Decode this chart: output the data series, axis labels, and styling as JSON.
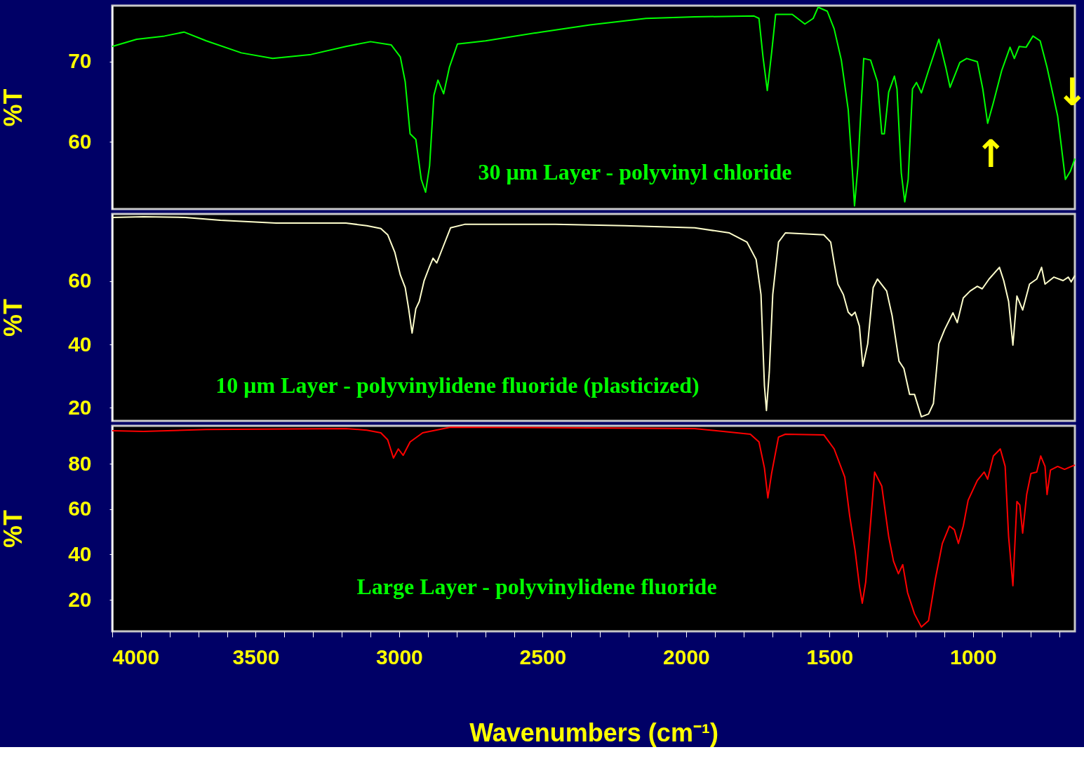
{
  "chart_data": [
    {
      "type": "line",
      "ylabel": "%T",
      "xlim": [
        4000,
        645
      ],
      "ylim": [
        51.6,
        77
      ],
      "yticks": [
        60,
        70
      ],
      "tick_labels": "y",
      "grid": false,
      "annotations": [
        "↑",
        "↓"
      ],
      "series": [
        {
          "name": "30 μm Layer - polyvinyl chloride",
          "color": "#00ff00",
          "x": [
            4000,
            3915,
            3818,
            3750,
            3672,
            3550,
            3441,
            3307,
            3186,
            3100,
            3028,
            2996,
            2979,
            2962,
            2942,
            2923,
            2908,
            2894,
            2879,
            2865,
            2845,
            2825,
            2797,
            2699,
            2505,
            2335,
            2140,
            1970,
            1763,
            1746,
            1732,
            1717,
            1702,
            1688,
            1654,
            1630,
            1586,
            1557,
            1540,
            1508,
            1484,
            1459,
            1435,
            1420,
            1413,
            1401,
            1381,
            1357,
            1333,
            1318,
            1309,
            1294,
            1274,
            1265,
            1250,
            1238,
            1226,
            1211,
            1197,
            1180,
            1155,
            1119,
            1095,
            1080,
            1046,
            1022,
            985,
            966,
            949,
            929,
            900,
            871,
            856,
            839,
            815,
            791,
            766,
            742,
            705,
            678,
            661,
            645
          ],
          "values": [
            71.9,
            72.8,
            73.2,
            73.7,
            72.6,
            71.1,
            70.4,
            70.9,
            71.9,
            72.5,
            72.1,
            70.6,
            67.5,
            61.0,
            60.3,
            55.3,
            53.7,
            57.0,
            65.8,
            67.7,
            66.0,
            69.3,
            72.2,
            72.6,
            73.7,
            74.6,
            75.4,
            75.6,
            75.7,
            75.4,
            70.6,
            66.4,
            71.1,
            75.9,
            75.9,
            75.9,
            74.7,
            75.4,
            76.8,
            76.3,
            74.1,
            70.2,
            64.0,
            56.1,
            52.0,
            57.0,
            70.4,
            70.2,
            67.5,
            61.0,
            61.0,
            66.2,
            68.2,
            66.6,
            56.1,
            52.5,
            55.3,
            66.6,
            67.4,
            66.1,
            68.9,
            72.8,
            69.3,
            66.8,
            69.9,
            70.4,
            70.0,
            66.6,
            62.3,
            64.9,
            68.9,
            71.8,
            70.4,
            71.9,
            71.8,
            73.2,
            72.6,
            69.3,
            63.2,
            55.3,
            56.3,
            57.9
          ]
        }
      ]
    },
    {
      "type": "line",
      "ylabel": "%T",
      "xlim": [
        4000,
        645
      ],
      "ylim": [
        15.8,
        81.3
      ],
      "yticks": [
        20,
        40,
        60
      ],
      "tick_labels": "y",
      "grid": false,
      "series": [
        {
          "name": "10 μm Layer - polyvinylidene fluoride (plasticized)",
          "color": "#ffffcc",
          "x": [
            4000,
            3891,
            3745,
            3623,
            3429,
            3186,
            3113,
            3064,
            3040,
            3015,
            2996,
            2979,
            2967,
            2955,
            2942,
            2930,
            2913,
            2894,
            2882,
            2869,
            2850,
            2821,
            2772,
            2456,
            2213,
            1970,
            1849,
            1788,
            1756,
            1739,
            1727,
            1720,
            1710,
            1698,
            1678,
            1654,
            1605,
            1520,
            1496,
            1484,
            1471,
            1452,
            1435,
            1423,
            1411,
            1396,
            1384,
            1367,
            1348,
            1333,
            1301,
            1282,
            1258,
            1241,
            1221,
            1204,
            1180,
            1155,
            1138,
            1119,
            1099,
            1070,
            1055,
            1034,
            1010,
            985,
            968,
            944,
            908,
            893,
            876,
            861,
            847,
            827,
            803,
            778,
            761,
            749,
            718,
            686,
            668,
            658,
            645
          ],
          "values": [
            80.2,
            80.4,
            80.2,
            79.3,
            78.4,
            78.4,
            77.6,
            76.7,
            74.7,
            69.1,
            62.0,
            58.0,
            51.3,
            43.6,
            51.3,
            53.6,
            60.2,
            64.7,
            67.3,
            65.8,
            70.2,
            76.9,
            78.0,
            78.0,
            77.6,
            76.9,
            75.3,
            72.4,
            66.9,
            55.8,
            26.9,
            19.1,
            31.3,
            55.8,
            72.4,
            75.3,
            75.1,
            74.7,
            72.4,
            65.8,
            59.1,
            55.8,
            50.2,
            49.1,
            50.2,
            45.8,
            33.1,
            40.2,
            58.0,
            60.7,
            56.9,
            49.1,
            34.7,
            32.4,
            24.2,
            24.2,
            17.1,
            18.0,
            21.3,
            40.2,
            44.7,
            50.0,
            46.9,
            54.7,
            56.9,
            58.4,
            57.6,
            60.7,
            64.4,
            60.2,
            53.6,
            39.8,
            55.3,
            50.9,
            59.1,
            60.7,
            64.4,
            59.1,
            61.3,
            60.2,
            61.3,
            59.8,
            61.8
          ]
        }
      ]
    },
    {
      "type": "line",
      "ylabel": "%T",
      "xlabel": "Wavenumbers (cm⁻¹)",
      "xlim": [
        4000,
        645
      ],
      "ylim": [
        6.1,
        96.7
      ],
      "yticks": [
        20,
        40,
        60,
        80
      ],
      "grid": false,
      "xticks": [
        4000,
        {
          "value": 3900,
          "label": null
        },
        {
          "value": 3800,
          "label": null
        },
        {
          "value": 3700,
          "label": null
        },
        {
          "value": 3600,
          "label": null
        },
        3500,
        {
          "value": 3400,
          "label": null
        },
        {
          "value": 3300,
          "label": null
        },
        {
          "value": 3200,
          "label": null
        },
        {
          "value": 3100,
          "label": null
        },
        3000,
        {
          "value": 2900,
          "label": null
        },
        {
          "value": 2800,
          "label": null
        },
        {
          "value": 2700,
          "label": null
        },
        {
          "value": 2600,
          "label": null
        },
        2500,
        {
          "value": 2400,
          "label": null
        },
        {
          "value": 2300,
          "label": null
        },
        {
          "value": 2200,
          "label": null
        },
        {
          "value": 2100,
          "label": null
        },
        2000,
        {
          "value": 1900,
          "label": null
        },
        {
          "value": 1800,
          "label": null
        },
        {
          "value": 1700,
          "label": null
        },
        {
          "value": 1600,
          "label": null
        },
        1500,
        {
          "value": 1400,
          "label": null
        },
        {
          "value": 1300,
          "label": null
        },
        {
          "value": 1200,
          "label": null
        },
        {
          "value": 1100,
          "label": null
        },
        1000,
        {
          "value": 900,
          "label": null
        },
        {
          "value": 800,
          "label": null
        },
        {
          "value": 700,
          "label": null
        }
      ],
      "series": [
        {
          "name": "Large Layer - polyvinylidene fluoride",
          "color": "#ff0000",
          "x": [
            4000,
            3891,
            3672,
            3186,
            3113,
            3064,
            3040,
            3020,
            3003,
            2986,
            2962,
            2918,
            2821,
            1970,
            1776,
            1746,
            1727,
            1715,
            1702,
            1678,
            1654,
            1520,
            1484,
            1447,
            1430,
            1411,
            1396,
            1386,
            1374,
            1357,
            1343,
            1318,
            1294,
            1277,
            1260,
            1245,
            1228,
            1204,
            1180,
            1155,
            1131,
            1107,
            1082,
            1065,
            1051,
            1034,
            1017,
            985,
            961,
            949,
            929,
            905,
            888,
            876,
            861,
            847,
            837,
            827,
            813,
            798,
            778,
            764,
            749,
            742,
            730,
            705,
            681,
            657,
            645
          ],
          "values": [
            94.5,
            94.2,
            95.1,
            95.5,
            94.8,
            93.6,
            90.5,
            82.5,
            86.5,
            83.7,
            89.6,
            93.6,
            96.1,
            95.5,
            93.0,
            89.6,
            78.1,
            64.9,
            75.7,
            91.7,
            93.0,
            92.7,
            86.5,
            74.1,
            57.1,
            41.7,
            26.2,
            18.5,
            27.8,
            54.0,
            76.3,
            70.1,
            47.9,
            37.0,
            31.5,
            35.5,
            23.1,
            13.8,
            8.0,
            10.8,
            29.3,
            44.8,
            52.5,
            50.9,
            44.8,
            52.5,
            63.9,
            72.6,
            76.3,
            73.2,
            83.4,
            86.5,
            78.8,
            47.9,
            26.2,
            63.3,
            61.8,
            49.4,
            66.4,
            75.7,
            76.3,
            83.4,
            78.8,
            66.4,
            77.2,
            78.8,
            77.5,
            78.8,
            79.4
          ]
        }
      ]
    }
  ]
}
